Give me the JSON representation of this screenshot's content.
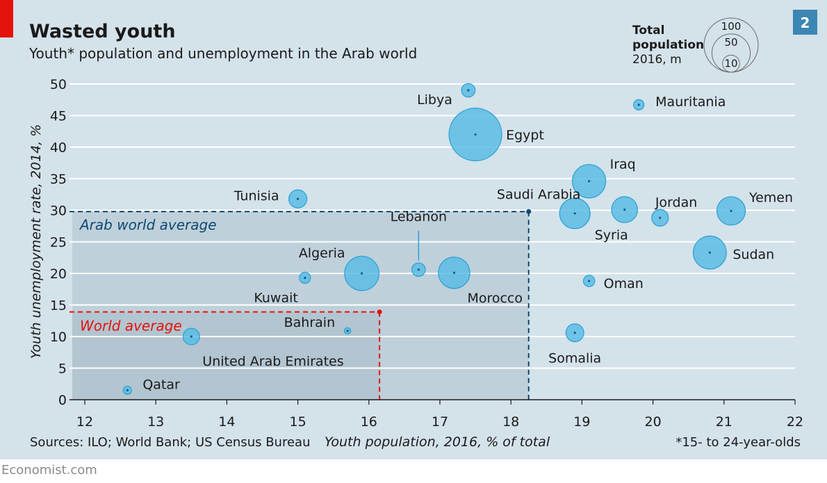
{
  "title": "Wasted youth",
  "subtitle": "Youth* population and unemployment in the Arab world",
  "badge": "2",
  "size_legend": {
    "title_lines": [
      "Total",
      "population",
      "2016, m"
    ],
    "values": [
      100,
      50,
      10
    ]
  },
  "footer": {
    "sources": "Sources: ILO; World Bank; US Census Bureau",
    "note": "*15- to 24-year-olds",
    "brand": "Economist.com"
  },
  "colors": {
    "background": "#d4e2ea",
    "bubble_fill": "#5bbce4",
    "bubble_stroke": "#2b9fd3",
    "arab_average": "#0c4a6e",
    "world_average": "#e3120b",
    "shade": "#9fb4c2",
    "accent": "#e3120b",
    "badge": "#3c86b4"
  },
  "chart_data": {
    "type": "scatter",
    "xlabel": "Youth population, 2016, % of total",
    "ylabel": "Youth unemployment rate, 2014, %",
    "xlim": [
      12,
      22
    ],
    "ylim": [
      0,
      50
    ],
    "x_ticks": [
      12,
      13,
      14,
      15,
      16,
      17,
      18,
      19,
      20,
      21,
      22
    ],
    "y_ticks": [
      0,
      5,
      10,
      15,
      20,
      25,
      30,
      35,
      40,
      45,
      50
    ],
    "grid": true,
    "size_unit": "Total population 2016, m",
    "points": [
      {
        "name": "Libya",
        "x": 17.4,
        "y": 49.0,
        "size": 6.3
      },
      {
        "name": "Egypt",
        "x": 17.5,
        "y": 42.0,
        "size": 94.7
      },
      {
        "name": "Mauritania",
        "x": 19.8,
        "y": 46.7,
        "size": 3.7
      },
      {
        "name": "Iraq",
        "x": 19.1,
        "y": 34.6,
        "size": 38.1
      },
      {
        "name": "Tunisia",
        "x": 15.0,
        "y": 31.8,
        "size": 11.1
      },
      {
        "name": "Saudi Arabia",
        "x": 18.9,
        "y": 29.5,
        "size": 31.7
      },
      {
        "name": "Syria",
        "x": 19.6,
        "y": 30.1,
        "size": 23.0
      },
      {
        "name": "Jordan",
        "x": 20.1,
        "y": 28.8,
        "size": 9.5
      },
      {
        "name": "Yemen",
        "x": 21.1,
        "y": 29.9,
        "size": 27.6
      },
      {
        "name": "Sudan",
        "x": 20.8,
        "y": 23.3,
        "size": 37.3
      },
      {
        "name": "Lebanon",
        "x": 16.7,
        "y": 20.6,
        "size": 6.2
      },
      {
        "name": "Morocco",
        "x": 17.2,
        "y": 20.1,
        "size": 33.7
      },
      {
        "name": "Algeria",
        "x": 15.9,
        "y": 20.0,
        "size": 40.3
      },
      {
        "name": "Kuwait",
        "x": 15.1,
        "y": 19.3,
        "size": 4.2
      },
      {
        "name": "Oman",
        "x": 19.1,
        "y": 18.8,
        "size": 4.4
      },
      {
        "name": "Bahrain",
        "x": 15.7,
        "y": 10.9,
        "size": 1.4
      },
      {
        "name": "United Arab Emirates",
        "x": 13.5,
        "y": 10.0,
        "size": 9.3
      },
      {
        "name": "Somalia",
        "x": 18.9,
        "y": 10.6,
        "size": 11.0
      },
      {
        "name": "Qatar",
        "x": 12.6,
        "y": 1.5,
        "size": 2.3
      }
    ],
    "reference_lines": [
      {
        "label": "Arab world average",
        "x": 18.25,
        "y": 29.8
      },
      {
        "label": "World average",
        "x": 16.15,
        "y": 13.9
      }
    ]
  }
}
